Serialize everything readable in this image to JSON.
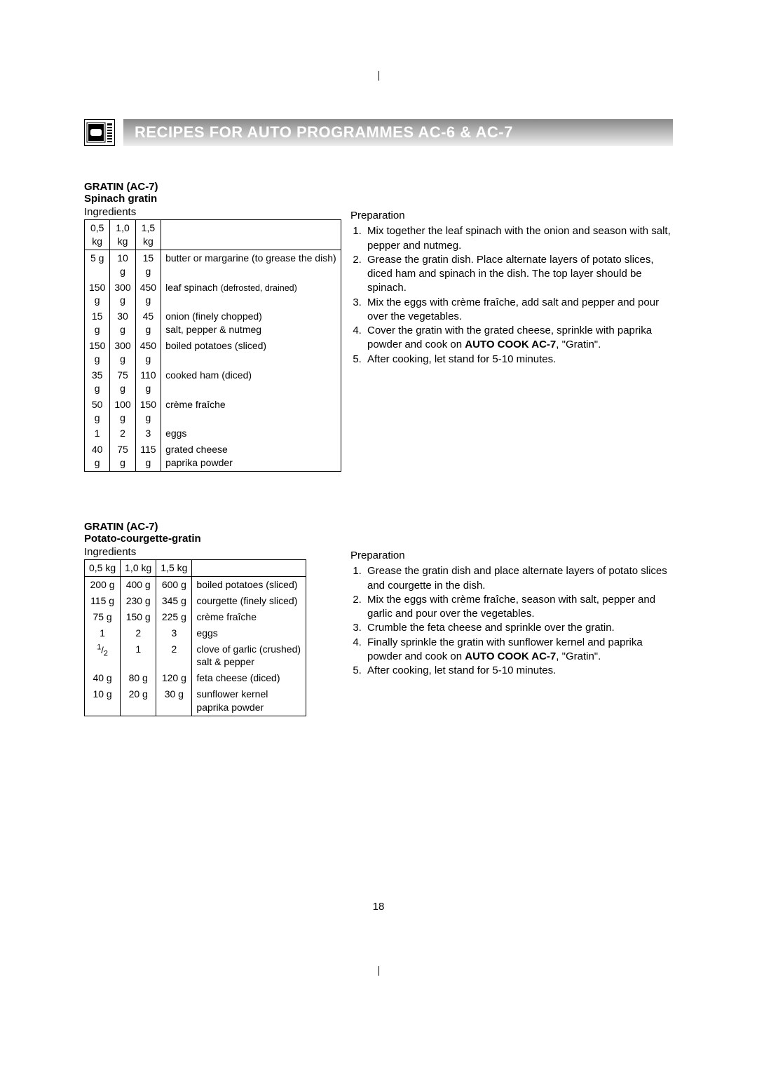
{
  "header": {
    "title": "RECIPES FOR AUTO PROGRAMMES AC-6 & AC-7"
  },
  "page_number": "18",
  "recipes": [
    {
      "code": "GRATIN (AC-7)",
      "name": "Spinach gratin",
      "ingredients_label": "Ingredients",
      "headers": [
        "0,5 kg",
        "1,0 kg",
        "1,5 kg",
        ""
      ],
      "rows": [
        [
          "5 g",
          "10 g",
          "15 g",
          "butter or margarine (to grease the dish)"
        ],
        [
          "150 g",
          "300 g",
          "450 g",
          "leaf spinach (defrosted, drained)"
        ],
        [
          "15 g",
          "30 g",
          "45 g",
          "onion (finely chopped)\nsalt, pepper & nutmeg"
        ],
        [
          "150 g",
          "300 g",
          "450 g",
          "boiled potatoes (sliced)"
        ],
        [
          "35 g",
          "75 g",
          "110 g",
          "cooked ham (diced)"
        ],
        [
          "50 g",
          "100 g",
          "150 g",
          "crème fraîche"
        ],
        [
          "1",
          "2",
          "3",
          "eggs"
        ],
        [
          "40 g",
          "75 g",
          "115 g",
          "grated cheese\npaprika powder"
        ]
      ],
      "prep_label": "Preparation",
      "steps_html": [
        "Mix together the leaf spinach with the onion and season with salt, pepper and nutmeg.",
        "Grease the gratin dish. Place alternate layers of potato slices, diced ham and spinach in the dish. The top layer should be spinach.",
        "Mix the eggs with crème fraîche, add salt and pepper and pour over the vegetables.",
        "Cover the gratin with the grated cheese, sprinkle with paprika powder and cook on <b>AUTO COOK AC-7</b>, \"Gratin\".",
        "After cooking, let stand for 5-10 minutes."
      ]
    },
    {
      "code": "GRATIN (AC-7)",
      "name": "Potato-courgette-gratin",
      "ingredients_label": "Ingredients",
      "headers": [
        "0,5 kg",
        "1,0 kg",
        "1,5 kg",
        ""
      ],
      "rows": [
        [
          "200 g",
          "400 g",
          "600 g",
          "boiled potatoes (sliced)"
        ],
        [
          "115 g",
          "230 g",
          "345 g",
          "courgette (finely sliced)"
        ],
        [
          "75 g",
          "150 g",
          "225 g",
          "crème fraîche"
        ],
        [
          "1",
          "2",
          "3",
          "eggs"
        ],
        [
          "1/2",
          "1",
          "2",
          "clove of garlic (crushed)\nsalt & pepper"
        ],
        [
          "40 g",
          "80 g",
          "120 g",
          "feta cheese (diced)"
        ],
        [
          "10 g",
          "20 g",
          "30 g",
          "sunflower kernel\npaprika powder"
        ]
      ],
      "prep_label": "Preparation",
      "steps_html": [
        "Grease the gratin dish and place alternate layers of potato slices and courgette in the dish.",
        "Mix the eggs with crème fraîche, season with salt, pepper and garlic and pour over the vegetables.",
        "Crumble the feta cheese and sprinkle over the gratin.",
        "Finally sprinkle the gratin with sunflower kernel and paprika powder and cook on <b>AUTO COOK AC-7</b>, \"Gratin\".",
        "After cooking, let stand for 5-10 minutes."
      ]
    }
  ]
}
